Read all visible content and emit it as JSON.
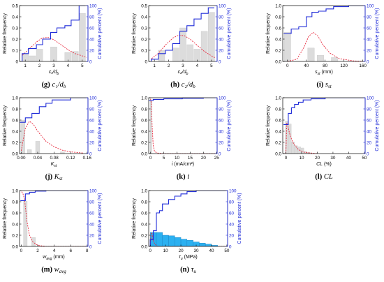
{
  "chart_data": [
    {
      "id": "g",
      "type": "bar",
      "caption_letter": "(g)",
      "caption_text": "c₁/d",
      "caption_sub": "b",
      "xlabel": "c₁/d",
      "xlabel_sub": "b",
      "ylabel": "Relative frequency",
      "y2label": "Cumulative percent (%)",
      "xlim": [
        0.6,
        5.4
      ],
      "xticks": [
        1,
        2,
        3,
        4,
        5
      ],
      "ylim": [
        0,
        0.5
      ],
      "yticks": [
        "0",
        "0.1",
        "0.2",
        "0.3",
        "0.4",
        "0.5"
      ],
      "y2ticks": [
        "0",
        "20",
        "40",
        "60",
        "80",
        "100"
      ],
      "bars": [
        {
          "x": 1.0,
          "w": 0.45,
          "h": 0.07
        },
        {
          "x": 1.5,
          "w": 0.45,
          "h": 0.05
        },
        {
          "x": 2.0,
          "w": 0.45,
          "h": 0.11
        },
        {
          "x": 3.0,
          "w": 0.45,
          "h": 0.13
        },
        {
          "x": 4.0,
          "w": 0.45,
          "h": 0.08
        },
        {
          "x": 4.5,
          "w": 0.45,
          "h": 0.09
        },
        {
          "x": 5.0,
          "w": 0.45,
          "h": 0.43
        }
      ],
      "cumulative": [
        [
          0.78,
          0
        ],
        [
          0.78,
          14
        ],
        [
          1.22,
          14
        ],
        [
          1.22,
          23
        ],
        [
          1.78,
          23
        ],
        [
          1.78,
          30
        ],
        [
          2.22,
          30
        ],
        [
          2.22,
          40
        ],
        [
          2.78,
          40
        ],
        [
          2.78,
          52
        ],
        [
          3.22,
          52
        ],
        [
          3.22,
          60
        ],
        [
          3.78,
          60
        ],
        [
          3.78,
          64
        ],
        [
          4.22,
          64
        ],
        [
          4.22,
          74
        ],
        [
          4.78,
          74
        ],
        [
          4.78,
          100
        ],
        [
          5.2,
          100
        ]
      ],
      "density": [
        [
          0.8,
          0.11
        ],
        [
          1.3,
          0.23
        ],
        [
          1.8,
          0.35
        ],
        [
          2.2,
          0.42
        ],
        [
          2.6,
          0.43
        ],
        [
          3.0,
          0.39
        ],
        [
          3.5,
          0.3
        ],
        [
          4.0,
          0.21
        ],
        [
          4.5,
          0.14
        ],
        [
          5.0,
          0.1
        ],
        [
          5.3,
          0.07
        ]
      ]
    },
    {
      "id": "h",
      "type": "bar",
      "caption_letter": "(h)",
      "caption_text": "c₂/d",
      "caption_sub": "b",
      "xlabel": "c₂/d",
      "xlabel_sub": "b",
      "ylabel": "Relative frequency",
      "y2label": "Cumulative percent (%)",
      "xlim": [
        0.6,
        5.4
      ],
      "xticks": [
        1,
        2,
        3,
        4,
        5
      ],
      "ylim": [
        0,
        0.5
      ],
      "yticks": [
        "0",
        "0.1",
        "0.2",
        "0.3",
        "0.4",
        "0.5"
      ],
      "y2ticks": [
        "0",
        "20",
        "40",
        "60",
        "80",
        "100"
      ],
      "bars": [
        {
          "x": 1.5,
          "w": 0.45,
          "h": 0.1
        },
        {
          "x": 2.5,
          "w": 0.45,
          "h": 0.12
        },
        {
          "x": 3.0,
          "w": 0.45,
          "h": 0.3
        },
        {
          "x": 3.5,
          "w": 0.45,
          "h": 0.15
        },
        {
          "x": 4.0,
          "w": 0.45,
          "h": 0.11
        },
        {
          "x": 4.5,
          "w": 0.45,
          "h": 0.27
        },
        {
          "x": 5.0,
          "w": 0.45,
          "h": 0.44
        }
      ],
      "cumulative": [
        [
          0.78,
          0
        ],
        [
          0.78,
          4
        ],
        [
          1.28,
          4
        ],
        [
          1.28,
          14
        ],
        [
          1.78,
          14
        ],
        [
          1.78,
          20
        ],
        [
          2.28,
          20
        ],
        [
          2.28,
          32
        ],
        [
          2.78,
          32
        ],
        [
          2.78,
          54
        ],
        [
          3.28,
          54
        ],
        [
          3.28,
          64
        ],
        [
          3.78,
          64
        ],
        [
          3.78,
          76
        ],
        [
          4.28,
          76
        ],
        [
          4.28,
          86
        ],
        [
          4.78,
          86
        ],
        [
          4.78,
          96
        ],
        [
          5.2,
          96
        ]
      ],
      "density": [
        [
          0.8,
          0.05
        ],
        [
          1.3,
          0.15
        ],
        [
          1.8,
          0.3
        ],
        [
          2.3,
          0.42
        ],
        [
          2.7,
          0.47
        ],
        [
          3.1,
          0.46
        ],
        [
          3.5,
          0.4
        ],
        [
          4.0,
          0.29
        ],
        [
          4.5,
          0.18
        ],
        [
          5.0,
          0.1
        ],
        [
          5.3,
          0.06
        ]
      ]
    },
    {
      "id": "i",
      "type": "bar",
      "caption_letter": "(i)",
      "caption_text": "s",
      "caption_sub": "st",
      "xlabel": "s",
      "xlabel_sub": "st",
      "xlabel_unit": " (mm)",
      "ylabel": "Relative frequency",
      "y2label": "Cumulative percent (%)",
      "xlim": [
        -10,
        165
      ],
      "xticks": [
        0,
        40,
        80,
        120,
        160
      ],
      "ylim": [
        0,
        1.0
      ],
      "yticks": [
        "0.0",
        "0.2",
        "0.4",
        "0.6",
        "0.8",
        "1.0"
      ],
      "y2ticks": [
        "0",
        "20",
        "40",
        "60",
        "80",
        "100"
      ],
      "bars": [
        {
          "x": 0,
          "w": 14,
          "h": 0.52
        },
        {
          "x": 50,
          "w": 14,
          "h": 0.24
        },
        {
          "x": 70,
          "w": 14,
          "h": 0.11
        },
        {
          "x": 100,
          "w": 14,
          "h": 0.07
        }
      ],
      "cumulative": [
        [
          -8,
          50
        ],
        [
          8,
          50
        ],
        [
          8,
          58
        ],
        [
          24,
          58
        ],
        [
          24,
          62
        ],
        [
          40,
          62
        ],
        [
          40,
          80
        ],
        [
          52,
          80
        ],
        [
          52,
          88
        ],
        [
          66,
          88
        ],
        [
          66,
          90
        ],
        [
          82,
          90
        ],
        [
          82,
          94
        ],
        [
          98,
          94
        ],
        [
          98,
          98
        ],
        [
          130,
          98
        ],
        [
          130,
          100
        ],
        [
          165,
          100
        ]
      ],
      "density": [
        [
          0,
          0
        ],
        [
          20,
          0.04
        ],
        [
          35,
          0.25
        ],
        [
          45,
          0.45
        ],
        [
          55,
          0.52
        ],
        [
          65,
          0.45
        ],
        [
          75,
          0.3
        ],
        [
          90,
          0.15
        ],
        [
          110,
          0.05
        ],
        [
          140,
          0.01
        ],
        [
          165,
          0
        ]
      ]
    },
    {
      "id": "j",
      "type": "bar",
      "caption_letter": "(j)",
      "caption_text": "K",
      "caption_sub": "st",
      "xlabel": "K",
      "xlabel_sub": "st",
      "ylabel": "Relative frequency",
      "y2label": "Cumulative percent (%)",
      "xlim": [
        -0.004,
        0.162
      ],
      "xticks": [
        0,
        0.04,
        0.08,
        0.12,
        0.16
      ],
      "xticklabels": [
        "0.00",
        "0.04",
        "0.08",
        "0.12",
        "0.16"
      ],
      "ylim": [
        0,
        1.0
      ],
      "yticks": [
        "0.0",
        "0.2",
        "0.4",
        "0.6",
        "0.8",
        "1.0"
      ],
      "y2ticks": [
        "0",
        "20",
        "40",
        "60",
        "80",
        "100"
      ],
      "bars": [
        {
          "x": 0.004,
          "w": 0.01,
          "h": 0.6
        },
        {
          "x": 0.02,
          "w": 0.01,
          "h": 0.07
        },
        {
          "x": 0.04,
          "w": 0.01,
          "h": 0.22
        },
        {
          "x": 0.1,
          "w": 0.01,
          "h": 0.03
        }
      ],
      "cumulative": [
        [
          -0.003,
          56
        ],
        [
          0.01,
          56
        ],
        [
          0.01,
          64
        ],
        [
          0.026,
          64
        ],
        [
          0.026,
          72
        ],
        [
          0.044,
          72
        ],
        [
          0.044,
          84
        ],
        [
          0.06,
          84
        ],
        [
          0.06,
          90
        ],
        [
          0.075,
          90
        ],
        [
          0.075,
          96
        ],
        [
          0.12,
          96
        ],
        [
          0.12,
          100
        ],
        [
          0.162,
          100
        ]
      ],
      "density": [
        [
          0,
          0.05
        ],
        [
          0.01,
          0.45
        ],
        [
          0.02,
          0.58
        ],
        [
          0.03,
          0.52
        ],
        [
          0.04,
          0.4
        ],
        [
          0.06,
          0.22
        ],
        [
          0.08,
          0.12
        ],
        [
          0.1,
          0.06
        ],
        [
          0.12,
          0.03
        ],
        [
          0.15,
          0.01
        ]
      ]
    },
    {
      "id": "k",
      "type": "bar",
      "caption_letter": "(k)",
      "caption_text": "i",
      "caption_sub": "",
      "xlabel": "i",
      "xlabel_sub": "",
      "xlabel_unit": " (mA/cm²)",
      "ylabel": "Relative frequency",
      "y2label": "Cumulative percent (%)",
      "xlim": [
        -0.7,
        25.2
      ],
      "xticks": [
        0,
        5,
        10,
        15,
        20,
        25
      ],
      "ylim": [
        0,
        1.0
      ],
      "yticks": [
        "0.0",
        "0.2",
        "0.4",
        "0.6",
        "0.8",
        "1.0"
      ],
      "y2ticks": [
        "0",
        "20",
        "40",
        "60",
        "80",
        "100"
      ],
      "bars": [
        {
          "x": 0.2,
          "w": 0.6,
          "h": 0.95
        }
      ],
      "cumulative": [
        [
          -0.6,
          95
        ],
        [
          1,
          95
        ],
        [
          1,
          97
        ],
        [
          5,
          97
        ],
        [
          5,
          98
        ],
        [
          12,
          98
        ],
        [
          12,
          99
        ],
        [
          20,
          99
        ],
        [
          20,
          100
        ],
        [
          25.2,
          100
        ]
      ],
      "density": [
        [
          0,
          0.98
        ],
        [
          0.3,
          0.9
        ],
        [
          0.6,
          0.5
        ],
        [
          1,
          0.15
        ],
        [
          1.5,
          0.04
        ],
        [
          2.5,
          0.01
        ],
        [
          5,
          0
        ],
        [
          25,
          0
        ]
      ]
    },
    {
      "id": "l",
      "type": "bar",
      "caption_letter": "(l)",
      "caption_text": "CL",
      "caption_sub": "",
      "xlabel": "CL",
      "xlabel_sub": "",
      "xlabel_unit": " (%)",
      "ylabel": "Relative frequency",
      "y2label": "Cumulative percent (%)",
      "xlim": [
        -2,
        50.5
      ],
      "xticks": [
        0,
        10,
        20,
        30,
        40,
        50
      ],
      "ylim": [
        0,
        1.0
      ],
      "yticks": [
        "0.0",
        "0.2",
        "0.4",
        "0.6",
        "0.8",
        "1.0"
      ],
      "y2ticks": [
        "0",
        "20",
        "40",
        "60",
        "80",
        "100"
      ],
      "bars": [
        {
          "x": 0.5,
          "w": 1.8,
          "h": 0.58
        },
        {
          "x": 2.5,
          "w": 1.8,
          "h": 0.53
        },
        {
          "x": 4.5,
          "w": 1.8,
          "h": 0.21
        },
        {
          "x": 6.5,
          "w": 1.8,
          "h": 0.14
        },
        {
          "x": 8.5,
          "w": 1.8,
          "h": 0.12
        },
        {
          "x": 10.5,
          "w": 1.8,
          "h": 0.1
        },
        {
          "x": 12.5,
          "w": 1.8,
          "h": 0.04
        },
        {
          "x": 14.5,
          "w": 1.8,
          "h": 0.02
        }
      ],
      "cumulative": [
        [
          -1.5,
          52
        ],
        [
          1.5,
          52
        ],
        [
          1.5,
          72
        ],
        [
          3.5,
          72
        ],
        [
          3.5,
          82
        ],
        [
          5.5,
          82
        ],
        [
          5.5,
          88
        ],
        [
          8,
          88
        ],
        [
          8,
          92
        ],
        [
          11,
          92
        ],
        [
          11,
          96
        ],
        [
          16,
          96
        ],
        [
          16,
          98
        ],
        [
          25,
          98
        ],
        [
          25,
          100
        ],
        [
          50.5,
          100
        ]
      ],
      "density": [
        [
          0,
          0
        ],
        [
          0.6,
          0.55
        ],
        [
          1.2,
          0.5
        ],
        [
          2,
          0.4
        ],
        [
          3,
          0.3
        ],
        [
          5,
          0.17
        ],
        [
          8,
          0.07
        ],
        [
          12,
          0.02
        ],
        [
          20,
          0
        ]
      ]
    },
    {
      "id": "m",
      "type": "bar",
      "caption_letter": "(m)",
      "caption_text": "w",
      "caption_sub": "avg",
      "xlabel": "w",
      "xlabel_sub": "avg",
      "xlabel_unit": " (mm)",
      "ylabel": "Relative frequency",
      "y2label": "Cumulative percent (%)",
      "xlim": [
        -0.2,
        8.1
      ],
      "xticks": [
        0,
        2,
        4,
        6,
        8
      ],
      "ylim": [
        0,
        1.0
      ],
      "yticks": [
        "0.0",
        "0.2",
        "0.4",
        "0.6",
        "0.8",
        "1.0"
      ],
      "y2ticks": [
        "0",
        "20",
        "40",
        "60",
        "80",
        "100"
      ],
      "bars": [
        {
          "x": 0.5,
          "w": 0.45,
          "h": 0.81
        },
        {
          "x": 1.5,
          "w": 0.45,
          "h": 0.16
        }
      ],
      "cumulative": [
        [
          -0.1,
          82
        ],
        [
          0.5,
          82
        ],
        [
          0.5,
          94
        ],
        [
          1,
          94
        ],
        [
          1,
          97
        ],
        [
          1.7,
          97
        ],
        [
          1.7,
          99
        ],
        [
          3,
          99
        ],
        [
          3,
          100
        ],
        [
          8.1,
          100
        ]
      ],
      "density": [
        [
          0.05,
          0.98
        ],
        [
          0.2,
          0.95
        ],
        [
          0.4,
          0.85
        ],
        [
          0.7,
          0.45
        ],
        [
          1,
          0.2
        ],
        [
          1.4,
          0.08
        ],
        [
          2,
          0.02
        ],
        [
          3,
          0
        ],
        [
          8,
          0
        ]
      ]
    },
    {
      "id": "n",
      "type": "bar",
      "caption_letter": "(n)",
      "caption_text": "τ",
      "caption_sub": "u",
      "xlabel": "τ",
      "xlabel_sub": "u",
      "xlabel_unit": " (MPa)",
      "ylabel": "Relative frequency",
      "y2label": "Cumulative percent (%)",
      "xlim": [
        -1,
        50.5
      ],
      "xticks": [
        0,
        10,
        20,
        30,
        40,
        50
      ],
      "ylim": [
        0,
        1.0
      ],
      "yticks": [
        "0.0",
        "0.2",
        "0.4",
        "0.6",
        "0.8",
        "1.0"
      ],
      "y2ticks": [
        "0",
        "20",
        "40",
        "60",
        "80",
        "100"
      ],
      "bars": [
        {
          "x": 0,
          "w": 4,
          "h": 0.25
        },
        {
          "x": 4,
          "w": 4,
          "h": 0.25
        },
        {
          "x": 8,
          "w": 4,
          "h": 0.2
        },
        {
          "x": 12,
          "w": 4,
          "h": 0.19
        },
        {
          "x": 16,
          "w": 4,
          "h": 0.16
        },
        {
          "x": 20,
          "w": 4,
          "h": 0.13
        },
        {
          "x": 24,
          "w": 4,
          "h": 0.11
        },
        {
          "x": 28,
          "w": 4,
          "h": 0.08
        },
        {
          "x": 32,
          "w": 4,
          "h": 0.06
        },
        {
          "x": 36,
          "w": 4,
          "h": 0.04
        },
        {
          "x": 40,
          "w": 4,
          "h": 0.02
        }
      ],
      "cumulative": [
        [
          0,
          0
        ],
        [
          0,
          12
        ],
        [
          2,
          12
        ],
        [
          2,
          28
        ],
        [
          4,
          28
        ],
        [
          4,
          60
        ],
        [
          6,
          60
        ],
        [
          6,
          64
        ],
        [
          8,
          64
        ],
        [
          8,
          76
        ],
        [
          12,
          76
        ],
        [
          12,
          84
        ],
        [
          16,
          84
        ],
        [
          16,
          90
        ],
        [
          20,
          90
        ],
        [
          20,
          94
        ],
        [
          24,
          94
        ],
        [
          24,
          98
        ],
        [
          30,
          98
        ],
        [
          30,
          100
        ],
        [
          50.5,
          100
        ]
      ],
      "density": [
        [
          0,
          0
        ],
        [
          0.5,
          0.2
        ],
        [
          1,
          0.25
        ],
        [
          2,
          0.1
        ],
        [
          3,
          0.04
        ],
        [
          5,
          0
        ],
        [
          50,
          0
        ]
      ]
    }
  ]
}
